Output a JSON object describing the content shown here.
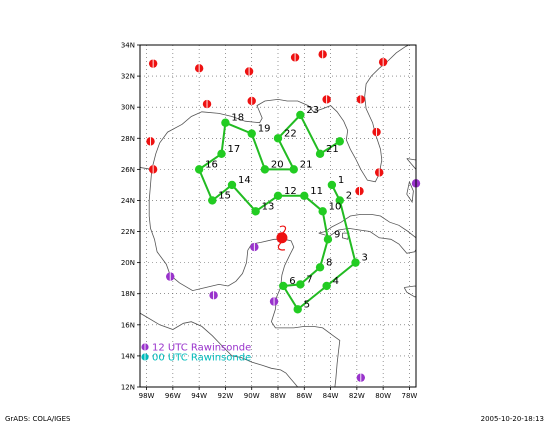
{
  "colors": {
    "frame": "#000000",
    "grid": "#555555",
    "coast": "#555555",
    "track": "#22bb22",
    "flight_point": "#22cc22",
    "raob_12": "#9933cc",
    "raob_00": "#00bbbb",
    "raob_red": "#ee1111",
    "storm": "#ee1111"
  },
  "map": {
    "lon_range": [
      -98.5,
      -77.5
    ],
    "lat_range": [
      12,
      34
    ],
    "lat_ticks": [
      {
        "v": 34,
        "label": "34N"
      },
      {
        "v": 32,
        "label": "32N"
      },
      {
        "v": 30,
        "label": "30N"
      },
      {
        "v": 28,
        "label": "28N"
      },
      {
        "v": 26,
        "label": "26N"
      },
      {
        "v": 24,
        "label": "24N"
      },
      {
        "v": 22,
        "label": "22N"
      },
      {
        "v": 20,
        "label": "20N"
      },
      {
        "v": 18,
        "label": "18N"
      },
      {
        "v": 16,
        "label": "16N"
      },
      {
        "v": 14,
        "label": "14N"
      },
      {
        "v": 12,
        "label": "12N"
      }
    ],
    "lon_ticks": [
      {
        "v": -98,
        "label": "98W"
      },
      {
        "v": -96,
        "label": "96W"
      },
      {
        "v": -94,
        "label": "94W"
      },
      {
        "v": -92,
        "label": "92W"
      },
      {
        "v": -90,
        "label": "90W"
      },
      {
        "v": -88,
        "label": "88W"
      },
      {
        "v": -86,
        "label": "86W"
      },
      {
        "v": -84,
        "label": "84W"
      },
      {
        "v": -82,
        "label": "82W"
      },
      {
        "v": -80,
        "label": "80W"
      },
      {
        "v": -78,
        "label": "78W"
      }
    ]
  },
  "flight_track": [
    {
      "id": "1",
      "lon": -83.9,
      "lat": 25.0
    },
    {
      "id": "2",
      "lon": -83.3,
      "lat": 24.0
    },
    {
      "id": "3",
      "lon": -82.1,
      "lat": 20.0
    },
    {
      "id": "4",
      "lon": -84.3,
      "lat": 18.5
    },
    {
      "id": "5",
      "lon": -86.5,
      "lat": 17.0
    },
    {
      "id": "6",
      "lon": -87.6,
      "lat": 18.5
    },
    {
      "id": "7",
      "lon": -86.3,
      "lat": 18.6
    },
    {
      "id": "8",
      "lon": -84.8,
      "lat": 19.7
    },
    {
      "id": "9",
      "lon": -84.2,
      "lat": 21.5
    },
    {
      "id": "10",
      "lon": -84.6,
      "lat": 23.3
    },
    {
      "id": "11",
      "lon": -86.0,
      "lat": 24.3
    },
    {
      "id": "12",
      "lon": -88.0,
      "lat": 24.3
    },
    {
      "id": "13",
      "lon": -89.7,
      "lat": 23.3
    },
    {
      "id": "14",
      "lon": -91.5,
      "lat": 25.0
    },
    {
      "id": "15",
      "lon": -93.0,
      "lat": 24.0
    },
    {
      "id": "16",
      "lon": -94.0,
      "lat": 26.0
    },
    {
      "id": "17",
      "lon": -92.3,
      "lat": 27.0
    },
    {
      "id": "18",
      "lon": -92.0,
      "lat": 29.0
    },
    {
      "id": "19",
      "lon": -90.0,
      "lat": 28.3
    },
    {
      "id": "20",
      "lon": -89.0,
      "lat": 26.0
    },
    {
      "id": "21",
      "lon": -86.8,
      "lat": 26.0
    },
    {
      "id": "22",
      "lon": -88.0,
      "lat": 28.0
    },
    {
      "id": "23",
      "lon": -86.3,
      "lat": 29.5
    },
    {
      "id": "21",
      "lon": -84.8,
      "lat": 27.0
    },
    {
      "id": "",
      "lon": -83.3,
      "lat": 27.8
    }
  ],
  "raob_red_stations": [
    {
      "lon": -97.5,
      "lat": 32.8
    },
    {
      "lon": -94.0,
      "lat": 32.5
    },
    {
      "lon": -90.2,
      "lat": 32.3
    },
    {
      "lon": -86.7,
      "lat": 33.2
    },
    {
      "lon": -84.6,
      "lat": 33.4
    },
    {
      "lon": -80.0,
      "lat": 32.9
    },
    {
      "lon": -93.4,
      "lat": 30.2
    },
    {
      "lon": -90.0,
      "lat": 30.4
    },
    {
      "lon": -84.3,
      "lat": 30.5
    },
    {
      "lon": -81.7,
      "lat": 30.5
    },
    {
      "lon": -80.5,
      "lat": 28.4
    },
    {
      "lon": -97.7,
      "lat": 27.8
    },
    {
      "lon": -97.5,
      "lat": 26.0
    },
    {
      "lon": -80.3,
      "lat": 25.8
    },
    {
      "lon": -81.8,
      "lat": 24.6
    }
  ],
  "raob_12_stations": [
    {
      "lon": -96.2,
      "lat": 19.1
    },
    {
      "lon": -92.9,
      "lat": 17.9
    },
    {
      "lon": -89.8,
      "lat": 21.0
    },
    {
      "lon": -88.3,
      "lat": 17.5
    },
    {
      "lon": -77.5,
      "lat": 25.1
    },
    {
      "lon": -81.7,
      "lat": 12.6
    }
  ],
  "storm": {
    "lon": -87.7,
    "lat": 21.6
  },
  "legend": {
    "items": [
      {
        "label": "12 UTC Rawinsonde",
        "color": "#9933cc"
      },
      {
        "label": "00 UTC Rawinsonde",
        "color": "#00bbbb"
      }
    ]
  },
  "footer": {
    "left": "GrADS: COLA/IGES",
    "right": "2005-10-20-18:13"
  }
}
